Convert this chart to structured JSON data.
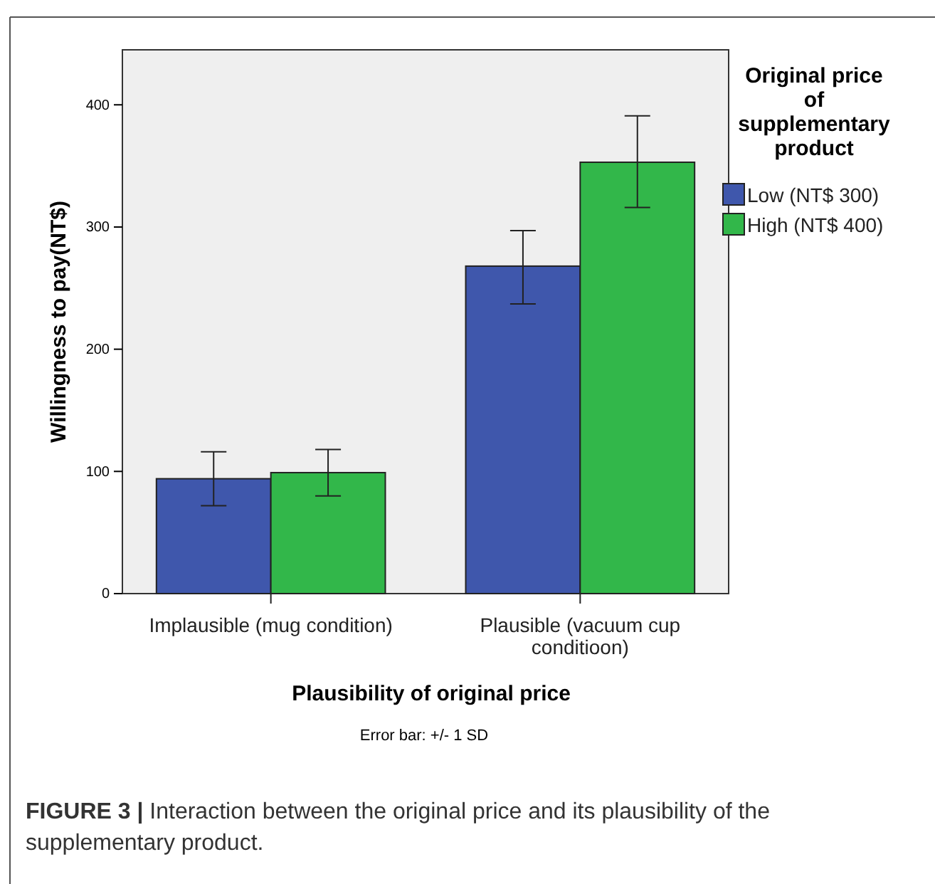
{
  "chart_data": {
    "type": "bar",
    "categories": [
      "Implausible (mug condition)",
      "Plausible (vacuum cup conditioon)"
    ],
    "series": [
      {
        "name": "Low (NT$ 300)",
        "color": "#3f57ac",
        "values": [
          94,
          268
        ],
        "errors": [
          [
            72,
            116
          ],
          [
            237,
            297
          ]
        ]
      },
      {
        "name": "High (NT$ 400)",
        "color": "#32b74a",
        "values": [
          99,
          353
        ],
        "errors": [
          [
            80,
            118
          ],
          [
            316,
            391
          ]
        ]
      }
    ],
    "xlabel": "Plausibility of original price",
    "ylabel": "Willingness to pay(NT$)",
    "legend_title": "Original price of supplementary product",
    "ylim": [
      0,
      445
    ],
    "yticks": [
      0,
      100,
      200,
      300,
      400
    ],
    "grid": false,
    "legend": "right",
    "annotations": [
      "Error bar: +/- 1 SD",
      "FIGURE 3 | Interaction between the original price and its plausibility of the supplementary product."
    ]
  }
}
